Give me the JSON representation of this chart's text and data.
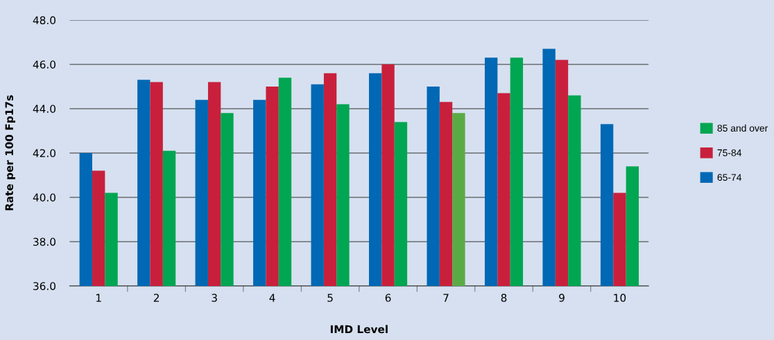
{
  "chart_data": {
    "type": "bar",
    "xlabel": "IMD Level",
    "ylabel": "Rate per 100 Fp17s",
    "categories": [
      "1",
      "2",
      "3",
      "4",
      "5",
      "6",
      "7",
      "8",
      "9",
      "10"
    ],
    "series": [
      {
        "name": "65-74",
        "color": "#0068b4",
        "values": [
          42.0,
          45.3,
          44.4,
          44.4,
          45.1,
          45.6,
          45.0,
          46.3,
          46.7,
          43.3
        ]
      },
      {
        "name": "75-84",
        "color": "#c8203c",
        "values": [
          41.2,
          45.2,
          45.2,
          45.0,
          45.6,
          46.0,
          44.3,
          44.7,
          46.2,
          40.2
        ]
      },
      {
        "name": "85 and over",
        "color": "#00a651",
        "colors": [
          "#00a651",
          "#00a651",
          "#00a651",
          "#00a651",
          "#00a651",
          "#00a651",
          "#5aab46",
          "#00a651",
          "#00a651",
          "#00a651"
        ],
        "values": [
          40.2,
          42.1,
          43.8,
          45.4,
          44.2,
          43.4,
          43.8,
          46.3,
          44.6,
          41.4
        ]
      }
    ],
    "ylim": [
      36,
      48
    ],
    "yticks": [
      {
        "value": 36,
        "label": "36.0"
      },
      {
        "value": 38,
        "label": "38.0"
      },
      {
        "value": 40,
        "label": "40.0"
      },
      {
        "value": 42,
        "label": "42.0"
      },
      {
        "value": 44,
        "label": "44.0"
      },
      {
        "value": 46,
        "label": "46.0"
      },
      {
        "value": 48,
        "label": "48.0"
      }
    ],
    "grid": "y",
    "legend": "right"
  }
}
